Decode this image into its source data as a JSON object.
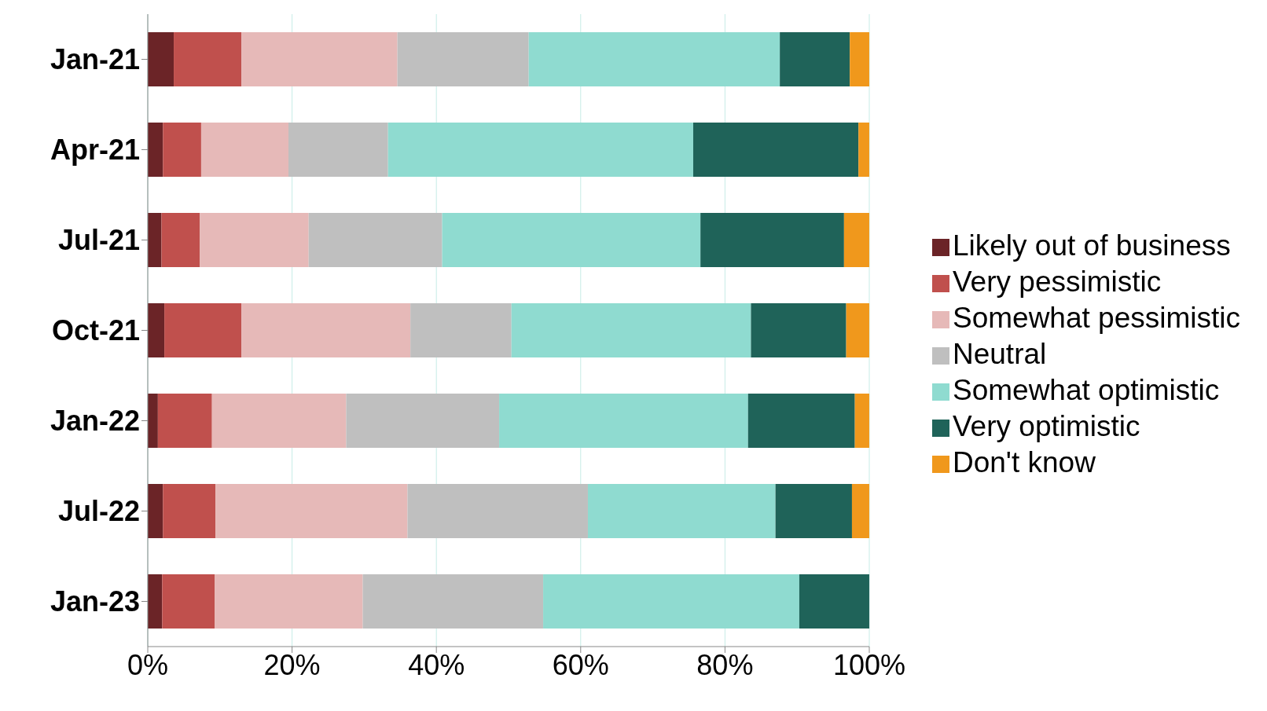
{
  "chart_data": {
    "type": "bar",
    "orientation": "horizontal",
    "stacked": true,
    "categories": [
      "Jan-21",
      "Apr-21",
      "Jul-21",
      "Oct-21",
      "Jan-22",
      "Jul-22",
      "Jan-23"
    ],
    "series": [
      {
        "name": "Likely out of business",
        "color": "#6b2427",
        "values": [
          3.6,
          2.1,
          1.9,
          2.3,
          1.4,
          2.1,
          2.0
        ]
      },
      {
        "name": "Very pessimistic",
        "color": "#c0504d",
        "values": [
          9.4,
          5.3,
          5.3,
          10.7,
          7.5,
          7.3,
          7.3
        ]
      },
      {
        "name": "Somewhat pessimistic",
        "color": "#e6b9b8",
        "values": [
          21.6,
          12.1,
          15.1,
          23.4,
          18.6,
          26.6,
          20.5
        ]
      },
      {
        "name": "Neutral",
        "color": "#bfbfbf",
        "values": [
          18.2,
          13.8,
          18.5,
          14.0,
          21.2,
          25.0,
          25.0
        ]
      },
      {
        "name": "Somewhat optimistic",
        "color": "#8fdbd0",
        "values": [
          34.8,
          42.3,
          35.8,
          33.2,
          34.5,
          26.0,
          35.5
        ]
      },
      {
        "name": "Very optimistic",
        "color": "#1f6359",
        "values": [
          9.7,
          22.9,
          19.9,
          13.2,
          14.8,
          10.6,
          9.7
        ]
      },
      {
        "name": "Don't know",
        "color": "#f0981c",
        "values": [
          2.7,
          1.5,
          3.5,
          3.2,
          2.0,
          2.4,
          0
        ]
      }
    ],
    "xlim": [
      0,
      100
    ],
    "xticks": [
      {
        "value": 0,
        "label": "0%"
      },
      {
        "value": 20,
        "label": "20%"
      },
      {
        "value": 40,
        "label": "40%"
      },
      {
        "value": 60,
        "label": "60%"
      },
      {
        "value": 80,
        "label": "80%"
      },
      {
        "value": 100,
        "label": "100%"
      }
    ],
    "grid": "x",
    "legend": "right"
  }
}
